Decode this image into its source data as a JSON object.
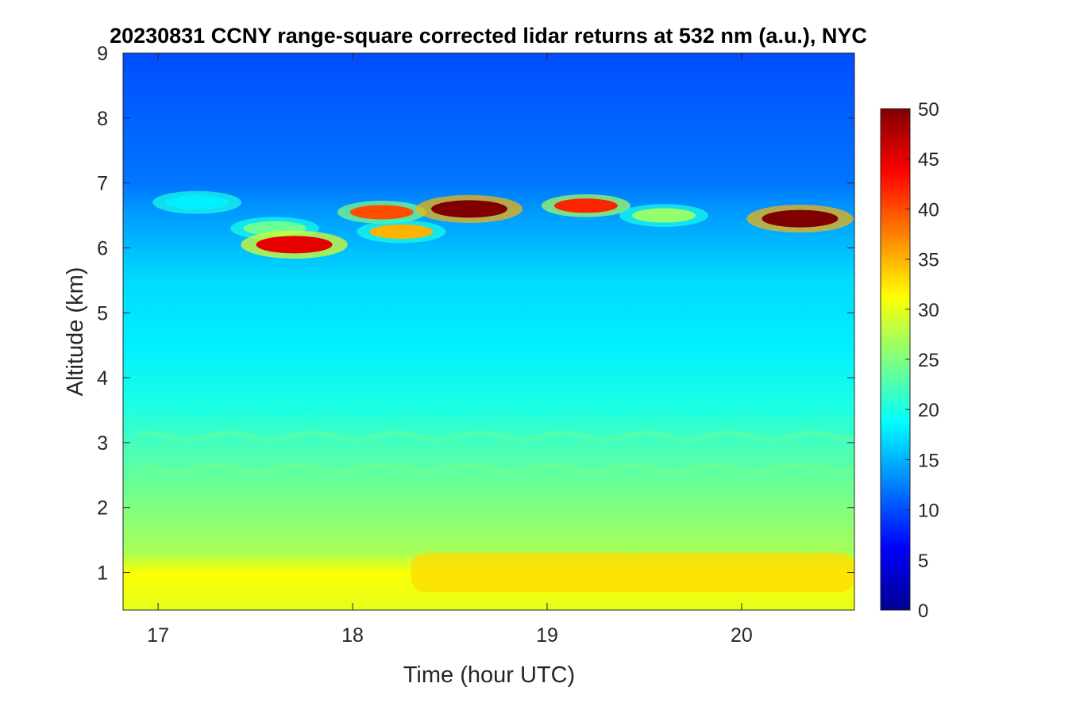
{
  "chart_data": {
    "type": "heatmap",
    "title": "20230831 CCNY range-square corrected lidar returns at 532 nm (a.u.), NYC",
    "xlabel": "Time (hour UTC)",
    "ylabel": "Altitude (km)",
    "xlim": [
      16.82,
      20.58
    ],
    "ylim": [
      0.42,
      9.0
    ],
    "x_ticks": [
      17,
      18,
      19,
      20
    ],
    "y_ticks": [
      1,
      2,
      3,
      4,
      5,
      6,
      7,
      8,
      9
    ],
    "colorbar": {
      "colormap": "jet",
      "clim": [
        0,
        50
      ],
      "ticks": [
        0,
        5,
        10,
        15,
        20,
        25,
        30,
        35,
        40,
        45,
        50
      ]
    },
    "colormap_stops": [
      "#00008f",
      "#0000ff",
      "#0080ff",
      "#00ffff",
      "#80ff80",
      "#ffff00",
      "#ff8000",
      "#ff0000",
      "#800000"
    ],
    "field_features": {
      "background_profile": [
        {
          "altitude": 0.42,
          "value": 30
        },
        {
          "altitude": 1.0,
          "value": 31
        },
        {
          "altitude": 1.3,
          "value": 27
        },
        {
          "altitude": 2.0,
          "value": 25
        },
        {
          "altitude": 3.0,
          "value": 22
        },
        {
          "altitude": 3.6,
          "value": 20
        },
        {
          "altitude": 4.5,
          "value": 18
        },
        {
          "altitude": 5.5,
          "value": 17
        },
        {
          "altitude": 6.5,
          "value": 14
        },
        {
          "altitude": 7.0,
          "value": 12
        },
        {
          "altitude": 8.0,
          "value": 11
        },
        {
          "altitude": 9.0,
          "value": 10
        }
      ],
      "boundary_layer_core": {
        "altitude_range": [
          0.7,
          1.3
        ],
        "time_range": [
          18.3,
          20.58
        ],
        "value": 33
      },
      "aerosol_layers": [
        {
          "altitude": 3.5,
          "time_range": [
            16.9,
            20.58
          ],
          "value": 20
        },
        {
          "altitude": 3.1,
          "time_range": [
            16.9,
            20.58
          ],
          "value": 23
        },
        {
          "altitude": 2.6,
          "time_range": [
            16.9,
            20.58
          ],
          "value": 24
        }
      ],
      "cirrus_cloud": [
        {
          "time": 17.2,
          "altitude": 6.7,
          "value": 18
        },
        {
          "time": 17.6,
          "altitude": 6.3,
          "value": 24
        },
        {
          "time": 17.7,
          "altitude": 6.05,
          "value": 45
        },
        {
          "time": 18.15,
          "altitude": 6.55,
          "value": 40
        },
        {
          "time": 18.25,
          "altitude": 6.25,
          "value": 35
        },
        {
          "time": 18.6,
          "altitude": 6.6,
          "value": 50
        },
        {
          "time": 19.2,
          "altitude": 6.65,
          "value": 42
        },
        {
          "time": 19.6,
          "altitude": 6.5,
          "value": 26
        },
        {
          "time": 20.3,
          "altitude": 6.45,
          "value": 50
        }
      ]
    }
  }
}
